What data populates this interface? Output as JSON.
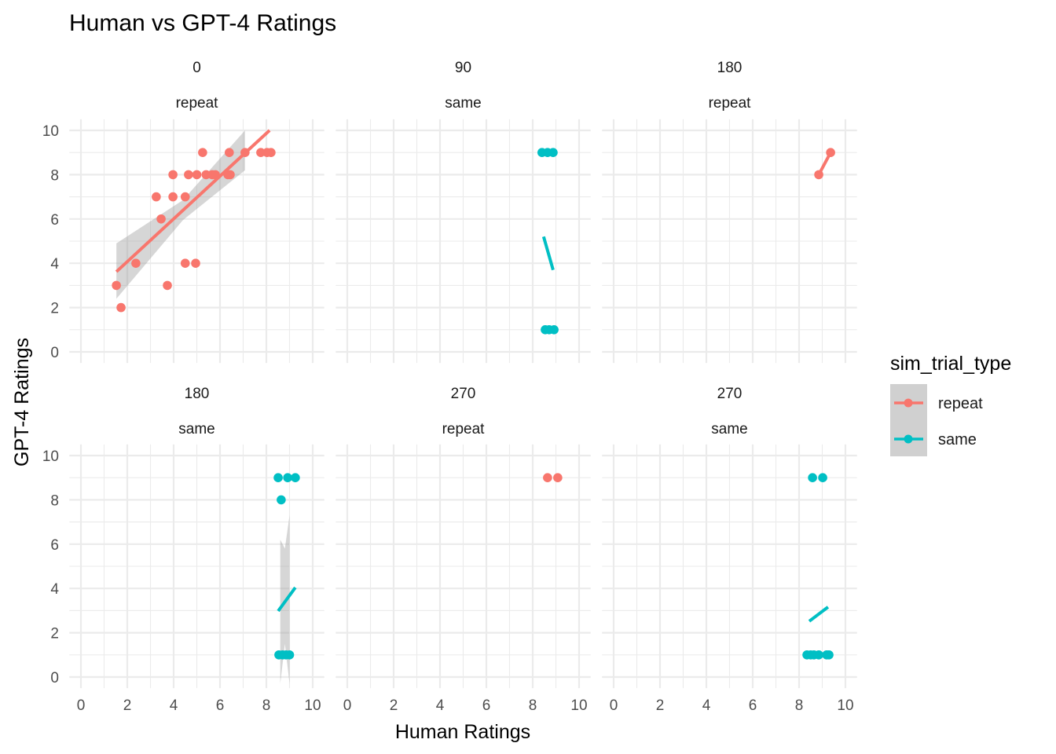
{
  "chart_data": {
    "type": "scatter",
    "title": "Human vs GPT-4 Ratings",
    "xlabel": "Human Ratings",
    "ylabel": "GPT-4 Ratings",
    "xlim": [
      0,
      10
    ],
    "ylim": [
      0,
      10
    ],
    "x_ticks": [
      "0",
      "2",
      "4",
      "6",
      "8",
      "10"
    ],
    "y_ticks": [
      "0",
      "2",
      "4",
      "6",
      "8",
      "10"
    ],
    "grid": true,
    "legend": {
      "title": "sim_trial_type",
      "placement": "right",
      "entries": [
        {
          "label": "repeat",
          "color": "#F8766D"
        },
        {
          "label": "same",
          "color": "#00BFC4"
        }
      ]
    },
    "facets": [
      {
        "strip": [
          "0",
          "repeat"
        ],
        "series": "repeat",
        "points": [
          [
            1.53,
            3
          ],
          [
            1.73,
            2
          ],
          [
            2.37,
            4
          ],
          [
            3.25,
            7
          ],
          [
            3.46,
            6
          ],
          [
            3.73,
            3
          ],
          [
            3.97,
            8
          ],
          [
            3.97,
            7
          ],
          [
            4.5,
            7
          ],
          [
            4.5,
            4
          ],
          [
            4.64,
            8
          ],
          [
            4.95,
            4
          ],
          [
            5.0,
            8
          ],
          [
            5.25,
            9
          ],
          [
            5.4,
            8
          ],
          [
            5.66,
            8
          ],
          [
            5.8,
            8
          ],
          [
            6.34,
            8
          ],
          [
            6.4,
            9
          ],
          [
            6.44,
            8
          ],
          [
            7.08,
            9
          ],
          [
            7.76,
            9
          ],
          [
            8.03,
            9
          ],
          [
            8.2,
            9
          ]
        ],
        "fit": [
          [
            1.53,
            3.62
          ],
          [
            8.14,
            10.0
          ]
        ],
        "ribbon": [
          [
            1.53,
            2.4,
            4.9
          ],
          [
            4.4,
            5.95,
            6.85
          ],
          [
            7.08,
            8.2,
            10.0
          ]
        ]
      },
      {
        "strip": [
          "90",
          "same"
        ],
        "series": "same",
        "points": [
          [
            8.4,
            9
          ],
          [
            8.64,
            9
          ],
          [
            8.88,
            9
          ],
          [
            8.54,
            1
          ],
          [
            8.71,
            1
          ],
          [
            8.92,
            1
          ]
        ],
        "fit": [
          [
            8.47,
            5.2
          ],
          [
            8.88,
            3.7
          ]
        ]
      },
      {
        "strip": [
          "180",
          "repeat"
        ],
        "series": "repeat",
        "points": [
          [
            8.85,
            8
          ],
          [
            9.36,
            9
          ]
        ],
        "fit": [
          [
            8.85,
            8
          ],
          [
            9.36,
            9
          ]
        ]
      },
      {
        "strip": [
          "180",
          "same"
        ],
        "series": "same",
        "points": [
          [
            8.51,
            9
          ],
          [
            8.92,
            9
          ],
          [
            9.25,
            9
          ],
          [
            8.64,
            8
          ],
          [
            8.54,
            1
          ],
          [
            8.7,
            1
          ],
          [
            8.85,
            1
          ],
          [
            9.0,
            1
          ]
        ],
        "fit": [
          [
            8.51,
            2.98
          ],
          [
            9.25,
            4.04
          ]
        ],
        "ribbon": [
          [
            8.6,
            -0.3,
            6.2
          ],
          [
            8.8,
            1.5,
            5.8
          ],
          [
            9.0,
            -0.3,
            7.3
          ]
        ]
      },
      {
        "strip": [
          "270",
          "repeat"
        ],
        "series": "repeat",
        "points": [
          [
            8.64,
            9
          ],
          [
            9.08,
            9
          ]
        ]
      },
      {
        "strip": [
          "270",
          "same"
        ],
        "series": "same",
        "points": [
          [
            8.58,
            9
          ],
          [
            9.02,
            9
          ],
          [
            8.34,
            1
          ],
          [
            8.5,
            1
          ],
          [
            8.64,
            1
          ],
          [
            8.85,
            1
          ],
          [
            9.19,
            1
          ],
          [
            9.29,
            1
          ]
        ],
        "fit": [
          [
            8.44,
            2.52
          ],
          [
            9.25,
            3.16
          ]
        ]
      }
    ]
  }
}
